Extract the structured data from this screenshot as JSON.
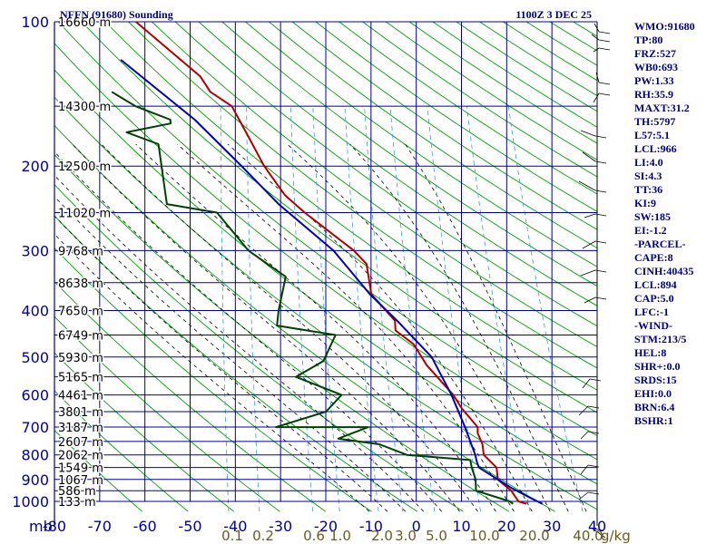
{
  "header": {
    "title": "NFFN (91680) Sounding",
    "time": "1100Z  3 DEC 25"
  },
  "indices": [
    "WMO:91680",
    "TP:80",
    "FRZ:527",
    "WB0:693",
    "PW:1.33",
    "RH:35.9",
    "MAXT:31.2",
    "TH:5797",
    "L57:5.1",
    "LCL:966",
    "LI:4.0",
    "SI:4.3",
    "TT:36",
    "KI:9",
    "SW:185",
    "EI:-1.2",
    "-PARCEL-",
    "CAPE:8",
    "CINH:40435",
    "LCL:894",
    "CAP:5.0",
    "LFC:-1",
    "-WIND-",
    "STM:213/5",
    "HEL:8",
    "SHR+:0.0",
    "SRDS:15",
    "EHI:0.0",
    "BRN:6.4",
    "BSHR:1"
  ],
  "colors": {
    "grid": "#0000a0",
    "dry_adiabat": "#00a000",
    "moist_adiabat": "#000000",
    "mixing_ratio": "#3a9bdc",
    "temperature": "#b00000",
    "dewpoint": "#004000",
    "parcel": "#0000b0",
    "bottom_labels": "#6b5a1e"
  },
  "chart_data": {
    "type": "line",
    "title": "NFFN (91680) Sounding",
    "subtitle": "1100Z  3 DEC 25",
    "xlabel": "",
    "ylabel": "mb",
    "xlim": [
      -80,
      40
    ],
    "ylim": [
      1000,
      100
    ],
    "y_scale": "log",
    "grid": true,
    "pressure_ticks": [
      100,
      200,
      300,
      400,
      500,
      600,
      700,
      800,
      900,
      1000
    ],
    "temperature_ticks": [
      "-80",
      "-70",
      "-60",
      "-50",
      "-40",
      "-30",
      "-20",
      "-10",
      "0",
      "10",
      "20",
      "30",
      "40"
    ],
    "height_labels": [
      {
        "p": 100,
        "label": "16660 m"
      },
      {
        "p": 150,
        "label": "14300 m"
      },
      {
        "p": 200,
        "label": "12500 m"
      },
      {
        "p": 250,
        "label": "11020 m"
      },
      {
        "p": 300,
        "label": "9768 m"
      },
      {
        "p": 350,
        "label": "8638 m"
      },
      {
        "p": 400,
        "label": "7650 m"
      },
      {
        "p": 450,
        "label": "6749 m"
      },
      {
        "p": 500,
        "label": "5930 m"
      },
      {
        "p": 550,
        "label": "5165 m"
      },
      {
        "p": 600,
        "label": "4461 m"
      },
      {
        "p": 650,
        "label": "3801 m"
      },
      {
        "p": 700,
        "label": "3187 m"
      },
      {
        "p": 750,
        "label": "2607 m"
      },
      {
        "p": 800,
        "label": "2062 m"
      },
      {
        "p": 850,
        "label": "1549 m"
      },
      {
        "p": 900,
        "label": "1067 m"
      },
      {
        "p": 950,
        "label": "586 m"
      },
      {
        "p": 1000,
        "label": "133 m"
      }
    ],
    "mixing_ratio_ticks": [
      "0.1",
      "0.2",
      "0.6",
      "1.0",
      "2.0",
      "3.0",
      "5.0",
      "10.0",
      "20.0",
      "40.0"
    ],
    "mixing_ratio_unit": "g/kg",
    "series": [
      {
        "id": "temperature",
        "points": [
          [
            24.5,
            1012
          ],
          [
            22.6,
            1000
          ],
          [
            20.6,
            950
          ],
          [
            17.2,
            900
          ],
          [
            16.5,
            850
          ],
          [
            13.2,
            800
          ],
          [
            12.5,
            760
          ],
          [
            11.0,
            720
          ],
          [
            10.8,
            700
          ],
          [
            6.6,
            640
          ],
          [
            4.2,
            600
          ],
          [
            -2.8,
            520
          ],
          [
            -6.5,
            470
          ],
          [
            -11.0,
            440
          ],
          [
            -11.5,
            420
          ],
          [
            -17.7,
            370
          ],
          [
            -19.9,
            320
          ],
          [
            -23.2,
            300
          ],
          [
            -35.5,
            250
          ],
          [
            -40.5,
            230
          ],
          [
            -46.2,
            200
          ],
          [
            -51.5,
            170
          ],
          [
            -55.6,
            150
          ],
          [
            -60.9,
            140
          ],
          [
            -63.7,
            130
          ],
          [
            -80.0,
            100
          ]
        ]
      },
      {
        "id": "dewpoint",
        "points": [
          [
            21.5,
            1012
          ],
          [
            20.7,
            1000
          ],
          [
            12.8,
            950
          ],
          [
            12.3,
            900
          ],
          [
            11.0,
            850
          ],
          [
            10.4,
            820
          ],
          [
            -3.8,
            800
          ],
          [
            -10.3,
            760
          ],
          [
            -19.6,
            740
          ],
          [
            -13.4,
            700
          ],
          [
            -33.8,
            700
          ],
          [
            -23.3,
            650
          ],
          [
            -20.5,
            600
          ],
          [
            -31.3,
            550
          ],
          [
            -25.8,
            510
          ],
          [
            -24.1,
            450
          ],
          [
            -37.4,
            430
          ],
          [
            -37.6,
            400
          ],
          [
            -37.3,
            340
          ],
          [
            -46.5,
            300
          ],
          [
            -54.9,
            250
          ],
          [
            -66.3,
            240
          ],
          [
            -68.9,
            200
          ],
          [
            -70.4,
            180
          ],
          [
            -77.9,
            170
          ],
          [
            -68.5,
            163
          ],
          [
            -68.7,
            160
          ],
          [
            -76.9,
            150
          ],
          [
            -82.7,
            140
          ]
        ]
      },
      {
        "id": "parcel",
        "points": [
          [
            28.0,
            1012
          ],
          [
            24.8,
            980
          ],
          [
            20.8,
            940
          ],
          [
            17.2,
            900
          ],
          [
            12.6,
            850
          ],
          [
            12.0,
            830
          ],
          [
            11.3,
            800
          ],
          [
            8.0,
            700
          ],
          [
            3.8,
            600
          ],
          [
            -2.0,
            500
          ],
          [
            -11.0,
            420
          ],
          [
            -18.0,
            370
          ],
          [
            -27.7,
            300
          ],
          [
            -41.6,
            240
          ],
          [
            -51.2,
            200
          ],
          [
            -63.3,
            160
          ],
          [
            -81.9,
            120
          ]
        ]
      }
    ]
  }
}
